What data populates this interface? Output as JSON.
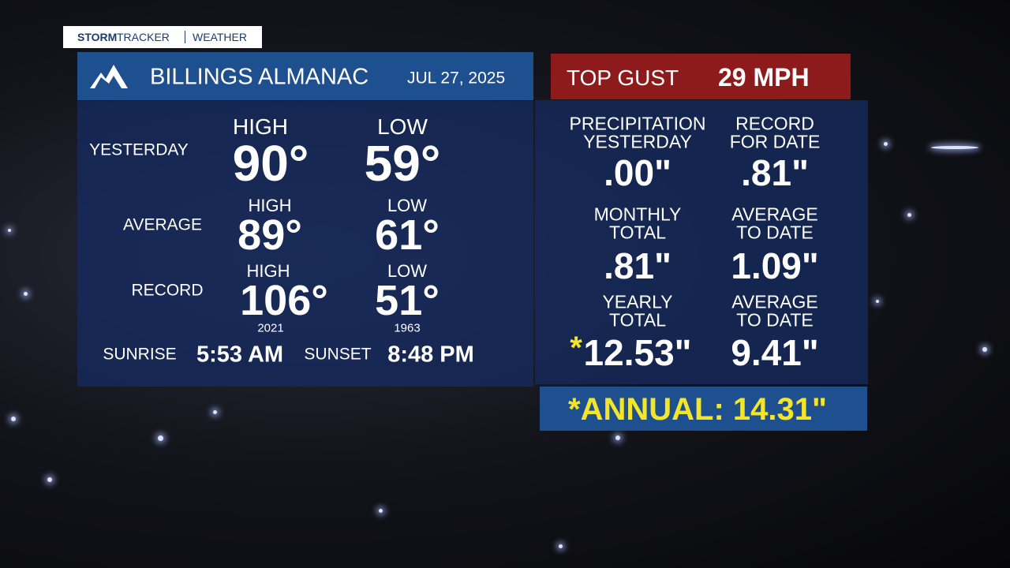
{
  "brand": {
    "storm": "STORM",
    "tracker": "TRACKER",
    "section": "WEATHER"
  },
  "header": {
    "title": "BILLINGS ALMANAC",
    "date": "JUL 27, 2025"
  },
  "gust": {
    "label": "TOP GUST",
    "value": "29 MPH"
  },
  "temperatures": {
    "rows": [
      {
        "label": "YESTERDAY",
        "high_label": "HIGH",
        "high": "90°",
        "low_label": "LOW",
        "low": "59°"
      },
      {
        "label": "AVERAGE",
        "high_label": "HIGH",
        "high": "89°",
        "low_label": "LOW",
        "low": "61°"
      },
      {
        "label": "RECORD",
        "high_label": "HIGH",
        "high": "106°",
        "high_year": "2021",
        "low_label": "LOW",
        "low": "51°",
        "low_year": "1963"
      }
    ]
  },
  "sun": {
    "sunrise_label": "SUNRISE",
    "sunrise": "5:53 AM",
    "sunset_label": "SUNSET",
    "sunset": "8:48 PM"
  },
  "precipitation": {
    "cells": [
      {
        "label": [
          "PRECIPITATION",
          "YESTERDAY"
        ],
        "value": ".00\""
      },
      {
        "label": [
          "RECORD",
          "FOR DATE"
        ],
        "value": ".81\""
      },
      {
        "label": [
          "MONTHLY",
          "TOTAL"
        ],
        "value": ".81\""
      },
      {
        "label": [
          "AVERAGE",
          "TO DATE"
        ],
        "value": "1.09\""
      },
      {
        "label": [
          "YEARLY",
          "TOTAL"
        ],
        "marker": "*",
        "value": "12.53\""
      },
      {
        "label": [
          "AVERAGE",
          "TO DATE"
        ],
        "value": "9.41\""
      }
    ]
  },
  "note": "*ANNUAL: 14.31\""
}
